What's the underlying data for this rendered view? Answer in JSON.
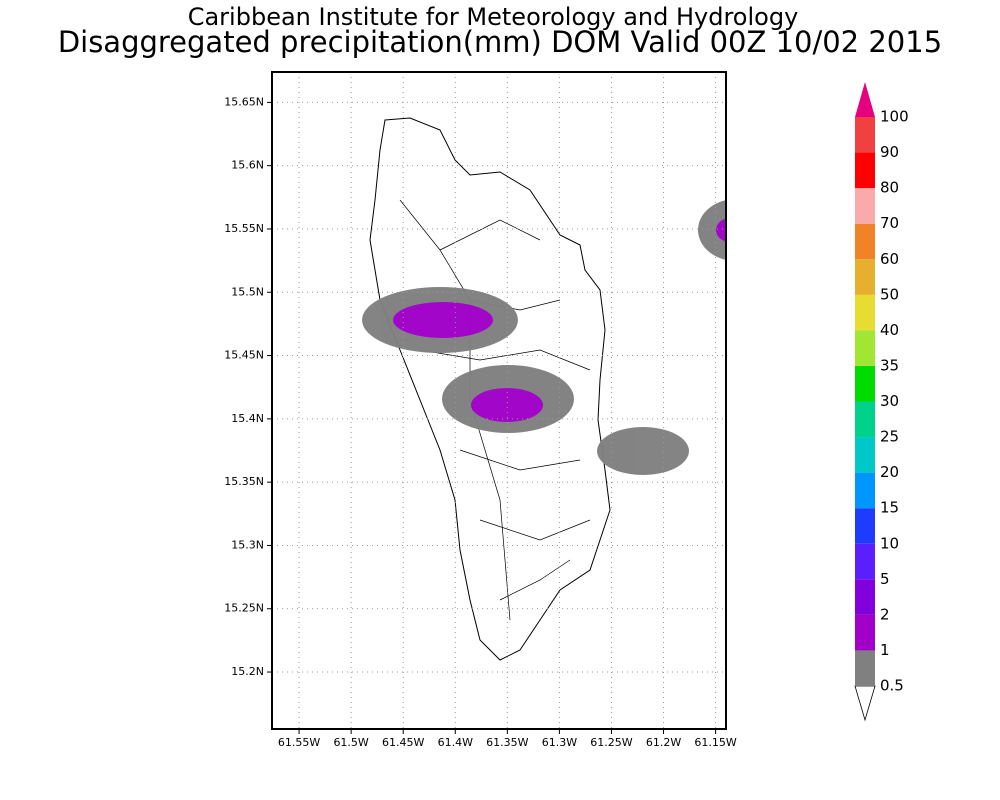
{
  "title": "Caribbean Institute for Meteorology and Hydrology",
  "subtitle": "Disaggregated precipitation(mm) DOM Valid 00Z 10/02 2015",
  "map": {
    "xlim": [
      -61.576,
      -61.14
    ],
    "ylim": [
      15.155,
      15.674
    ],
    "grid": true,
    "xticks": [
      {
        "value": -61.55,
        "label": "61.55W"
      },
      {
        "value": -61.5,
        "label": "61.5W"
      },
      {
        "value": -61.45,
        "label": "61.45W"
      },
      {
        "value": -61.4,
        "label": "61.4W"
      },
      {
        "value": -61.35,
        "label": "61.35W"
      },
      {
        "value": -61.3,
        "label": "61.3W"
      },
      {
        "value": -61.25,
        "label": "61.25W"
      },
      {
        "value": -61.2,
        "label": "61.2W"
      },
      {
        "value": -61.15,
        "label": "61.15W"
      }
    ],
    "yticks": [
      {
        "value": 15.2,
        "label": "15.2N"
      },
      {
        "value": 15.25,
        "label": "15.25N"
      },
      {
        "value": 15.3,
        "label": "15.3N"
      },
      {
        "value": 15.35,
        "label": "15.35N"
      },
      {
        "value": 15.4,
        "label": "15.4N"
      },
      {
        "value": 15.45,
        "label": "15.45N"
      },
      {
        "value": 15.5,
        "label": "15.5N"
      },
      {
        "value": 15.55,
        "label": "15.55N"
      },
      {
        "value": 15.6,
        "label": "15.6N"
      },
      {
        "value": 15.65,
        "label": "15.65N"
      }
    ]
  },
  "colorbar": {
    "levels": [
      0.5,
      1,
      2,
      5,
      10,
      15,
      20,
      25,
      30,
      35,
      40,
      50,
      60,
      70,
      80,
      90,
      100
    ],
    "colors": [
      "#ffffff",
      "#808080",
      "#a000c8",
      "#8200dc",
      "#5a1eff",
      "#1e3cff",
      "#0096ff",
      "#00c8c8",
      "#00d28c",
      "#00dc00",
      "#a0e632",
      "#e6dc32",
      "#e6af2d",
      "#f08228",
      "#faaaaa",
      "#ff0000",
      "#f04040",
      "#e6007f"
    ]
  }
}
